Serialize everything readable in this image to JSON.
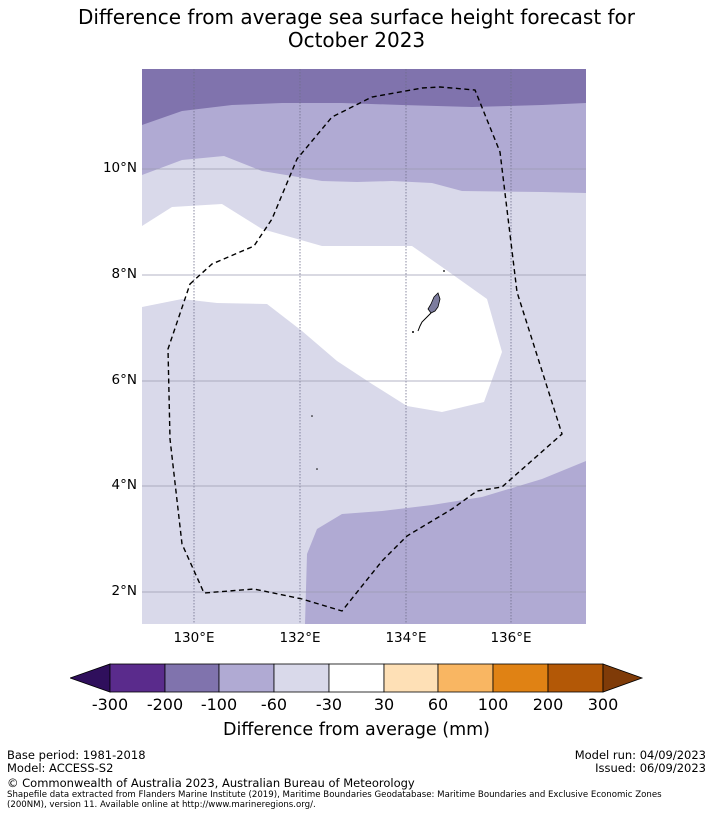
{
  "title_line1": "Difference from average sea surface height forecast for",
  "title_line2": "October 2023",
  "map": {
    "lat_labels": [
      "10°N",
      "8°N",
      "6°N",
      "4°N",
      "2°N"
    ],
    "lon_labels": [
      "130°E",
      "132°E",
      "134°E",
      "136°E"
    ],
    "legend_colors": {
      "m300": "#2f0f5c",
      "m200": "#5a2b8c",
      "m100": "#8073ad",
      "m60": "#b0aad3",
      "m30": "#d9d9ea",
      "zero": "#ffffff",
      "p30": "#fee0b6",
      "p60": "#f9b662",
      "p100": "#e08214",
      "p200": "#b35806",
      "p300": "#7f3b08"
    }
  },
  "colorbar": {
    "tick_labels": [
      "-300",
      "-200",
      "-100",
      "-60",
      "-30",
      "30",
      "60",
      "100",
      "200",
      "300"
    ],
    "title": "Difference from average (mm)"
  },
  "footer": {
    "base_period": "Base period: 1981-2018",
    "model": "Model: ACCESS-S2",
    "model_run": "Model run: 04/09/2023",
    "issued": "Issued: 06/09/2023",
    "copyright": "© Commonwealth of Australia 2023, Australian Bureau of Meteorology",
    "shapefile_line1": "Shapefile data extracted from Flanders Marine Institute (2019), Maritime Boundaries Geodatabase: Maritime Boundaries and Exclusive Economic Zones",
    "shapefile_line2": "(200NM), version 11. Available online at http://www.marineregions.org/."
  }
}
